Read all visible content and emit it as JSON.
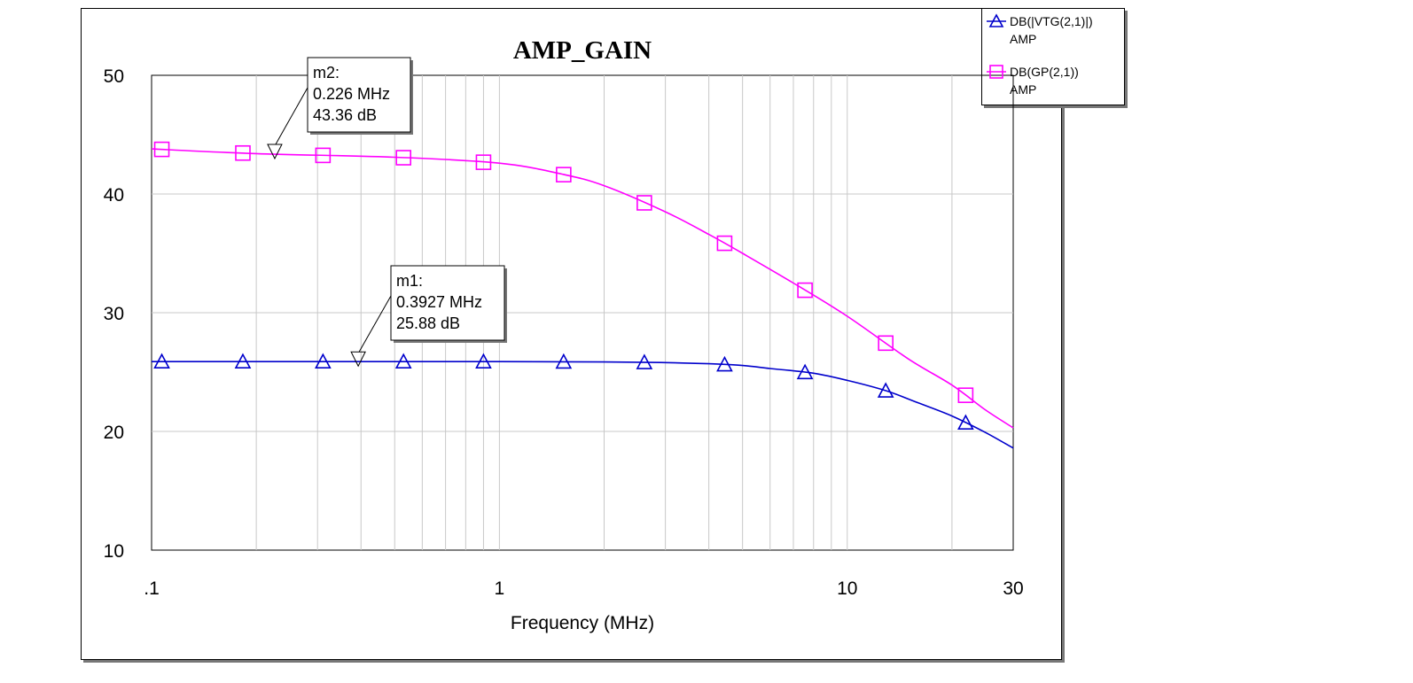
{
  "chart_data": {
    "type": "line",
    "title": "AMP_GAIN",
    "xlabel": "Frequency (MHz)",
    "ylabel": "",
    "xscale": "log",
    "xlim": [
      0.1,
      30
    ],
    "ylim": [
      10,
      50
    ],
    "x_ticks": [
      ".1",
      "1",
      "10",
      "30"
    ],
    "y_ticks": [
      "10",
      "20",
      "30",
      "40",
      "50"
    ],
    "grid": true,
    "legend_position": "top-right",
    "series": [
      {
        "name": "DB(|VTG(2,1)|)",
        "sub": "AMP",
        "color": "#0000cc",
        "marker": "triangle",
        "x": [
          0.1,
          0.2,
          0.5,
          1,
          2,
          3,
          4,
          5,
          6,
          8,
          10,
          13,
          16,
          20,
          25,
          30
        ],
        "y": [
          25.88,
          25.88,
          25.88,
          25.88,
          25.85,
          25.8,
          25.7,
          25.55,
          25.3,
          24.9,
          24.3,
          23.4,
          22.4,
          21.3,
          19.9,
          18.6
        ],
        "marker_x": [
          0.107,
          0.183,
          0.311,
          0.53,
          0.9,
          1.53,
          2.61,
          4.44,
          7.56,
          12.9,
          21.9
        ]
      },
      {
        "name": "DB(GP(2,1))",
        "sub": "AMP",
        "color": "#ff00ff",
        "marker": "square",
        "x": [
          0.1,
          0.2,
          0.5,
          1,
          1.5,
          2,
          3,
          4,
          5,
          7,
          10,
          15,
          20,
          25,
          30
        ],
        "y": [
          43.8,
          43.4,
          43.1,
          42.6,
          41.7,
          40.7,
          38.5,
          36.6,
          35.0,
          32.5,
          29.7,
          26.1,
          23.9,
          21.8,
          20.3
        ],
        "marker_x": [
          0.107,
          0.183,
          0.311,
          0.53,
          0.9,
          1.53,
          2.61,
          4.44,
          7.56,
          12.9,
          21.9
        ]
      }
    ],
    "markers": [
      {
        "name": "m1:",
        "x": 0.3927,
        "y": 25.88,
        "label_x": "0.3927 MHz",
        "label_y": "25.88 dB"
      },
      {
        "name": "m2:",
        "x": 0.226,
        "y": 43.36,
        "label_x": "0.226 MHz",
        "label_y": "43.36 dB"
      }
    ]
  }
}
